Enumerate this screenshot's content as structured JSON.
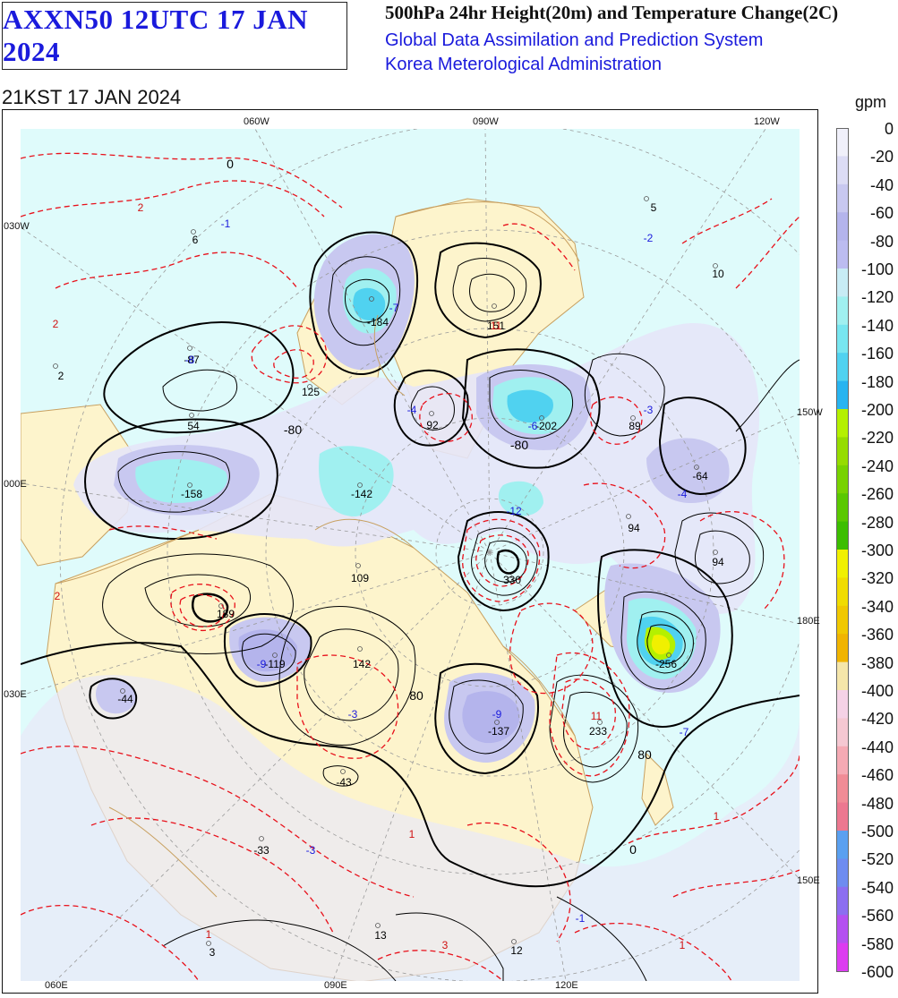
{
  "header": {
    "product_title": "AXXN50 12UTC 17 JAN 2024",
    "chart_title": "500hPa 24hr Height(20m) and Temperature Change(2C)",
    "system_name": "Global Data Assimilation and Prediction System",
    "agency": "Korea Meterological Administration",
    "valid_time": "21KST 17 JAN 2024"
  },
  "map": {
    "top_lon_labels": [
      "060W",
      "090W",
      "120W"
    ],
    "bottom_lon_labels": [
      "060E",
      "090E",
      "120E"
    ],
    "left_lon_labels": [
      "030W",
      "000E",
      "030E"
    ],
    "right_lon_labels": [
      "150W",
      "180E",
      "150E"
    ],
    "colors": {
      "height_contour": "#000000",
      "temp_contour": "#e8101a",
      "land": "#fdf4cc",
      "ocean": "#dffbfb",
      "coast": "#c8a060",
      "grid": "#9a9a9a"
    },
    "height_labels": [
      {
        "text": "-184",
        "sign": "neg"
      },
      {
        "text": "151",
        "sign": "pos"
      },
      {
        "text": "125",
        "sign": "pos"
      },
      {
        "text": "92",
        "sign": "pos"
      },
      {
        "text": "-202",
        "sign": "neg"
      },
      {
        "text": "89",
        "sign": "pos"
      },
      {
        "text": "-64",
        "sign": "neg"
      },
      {
        "text": "-158",
        "sign": "neg"
      },
      {
        "text": "-142",
        "sign": "neg"
      },
      {
        "text": "94",
        "sign": "pos"
      },
      {
        "text": "94",
        "sign": "pos"
      },
      {
        "text": "109",
        "sign": "pos"
      },
      {
        "text": "330",
        "sign": "pos"
      },
      {
        "text": "189",
        "sign": "pos"
      },
      {
        "text": "-119",
        "sign": "neg"
      },
      {
        "text": "142",
        "sign": "pos"
      },
      {
        "text": "-256",
        "sign": "neg"
      },
      {
        "text": "-137",
        "sign": "neg"
      },
      {
        "text": "233",
        "sign": "pos"
      },
      {
        "text": "-44",
        "sign": "neg"
      },
      {
        "text": "-43",
        "sign": "neg"
      },
      {
        "text": "-33",
        "sign": "neg"
      },
      {
        "text": "54",
        "sign": "pos"
      },
      {
        "text": "-87",
        "sign": "neg"
      },
      {
        "text": "6",
        "sign": "pos"
      },
      {
        "text": "2",
        "sign": "pos"
      },
      {
        "text": "5",
        "sign": "pos"
      },
      {
        "text": "10",
        "sign": "pos"
      },
      {
        "text": "13",
        "sign": "pos"
      },
      {
        "text": "12",
        "sign": "pos"
      },
      {
        "text": "3",
        "sign": "pos"
      }
    ],
    "temp_labels": [
      {
        "text": "2",
        "sign": "pos"
      },
      {
        "text": "-1",
        "sign": "neg"
      },
      {
        "text": "2",
        "sign": "pos"
      },
      {
        "text": "-7",
        "sign": "neg"
      },
      {
        "text": "11",
        "sign": "pos"
      },
      {
        "text": "-4",
        "sign": "neg"
      },
      {
        "text": "-6",
        "sign": "neg"
      },
      {
        "text": "-12",
        "sign": "neg"
      },
      {
        "text": "-3",
        "sign": "neg"
      },
      {
        "text": "-4",
        "sign": "neg"
      },
      {
        "text": "-8",
        "sign": "neg"
      },
      {
        "text": "-9",
        "sign": "neg"
      },
      {
        "text": "-9",
        "sign": "neg"
      },
      {
        "text": "11",
        "sign": "pos"
      },
      {
        "text": "-7",
        "sign": "neg"
      },
      {
        "text": "-3",
        "sign": "neg"
      },
      {
        "text": "-2",
        "sign": "neg"
      },
      {
        "text": "-3",
        "sign": "neg"
      },
      {
        "text": "1",
        "sign": "pos"
      },
      {
        "text": "1",
        "sign": "pos"
      },
      {
        "text": "-1",
        "sign": "neg"
      },
      {
        "text": "1",
        "sign": "pos"
      },
      {
        "text": "3",
        "sign": "pos"
      },
      {
        "text": "1",
        "sign": "pos"
      },
      {
        "text": "2",
        "sign": "pos"
      }
    ],
    "contour_labels": [
      "0",
      "-80",
      "80",
      "-80",
      "80",
      "0"
    ]
  },
  "colorbar": {
    "unit": "gpm",
    "levels": [
      "0",
      "-20",
      "-40",
      "-60",
      "-80",
      "-100",
      "-120",
      "-140",
      "-160",
      "-180",
      "-200",
      "-220",
      "-240",
      "-260",
      "-280",
      "-300",
      "-320",
      "-340",
      "-360",
      "-380",
      "-400",
      "-420",
      "-440",
      "-460",
      "-480",
      "-500",
      "-520",
      "-540",
      "-560",
      "-580",
      "-600"
    ],
    "colors": [
      "#f0f0fa",
      "#dcdcf5",
      "#c8c8f0",
      "#b4b4ec",
      "#bcbcf0",
      "#c8ecf5",
      "#a0f0f0",
      "#78e6f0",
      "#50d2f0",
      "#28b4f0",
      "#b4f000",
      "#96dc00",
      "#78d200",
      "#5ac800",
      "#3cbe00",
      "#f0f000",
      "#f0dc00",
      "#f0c800",
      "#f0b400",
      "#f5e6aa",
      "#f5d2e6",
      "#f5c8d2",
      "#f5aab4",
      "#f08c96",
      "#ec7890",
      "#5aa0f0",
      "#6e8cf0",
      "#8c6ef0",
      "#b450f0",
      "#dc3cf0"
    ]
  }
}
